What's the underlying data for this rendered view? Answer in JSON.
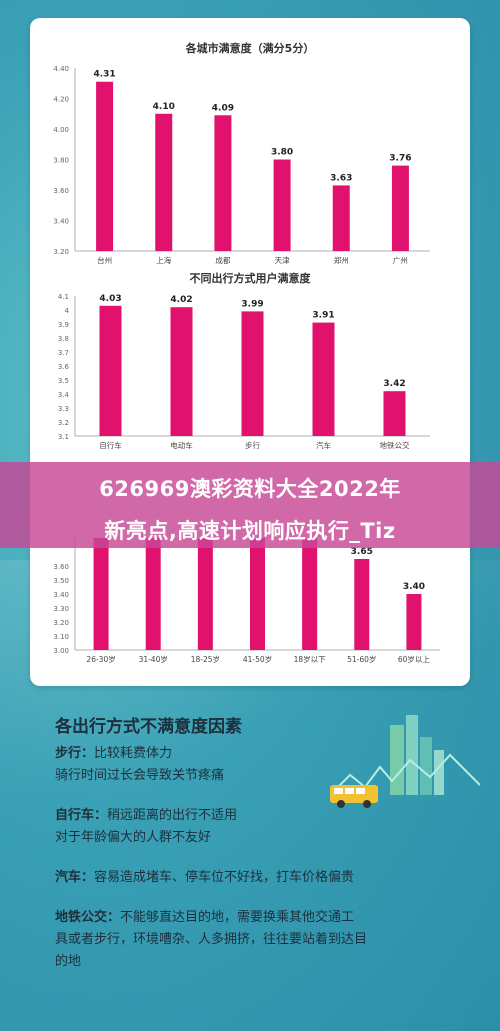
{
  "banner": {
    "text_line1": "626969澳彩资料大全2022年",
    "text_line2": "新亮点,高速计划响应执行_Tiz"
  },
  "chart_data": [
    {
      "type": "bar",
      "title": "各城市满意度（满分5分）",
      "categories": [
        "台州",
        "上海",
        "成都",
        "天津",
        "郑州",
        "广州"
      ],
      "values": [
        4.31,
        4.1,
        4.09,
        3.8,
        3.63,
        3.76
      ],
      "ylim": [
        3.2,
        4.4
      ],
      "yticks": [
        "3.20",
        "3.40",
        "3.60",
        "3.80",
        "4.00",
        "4.20",
        "4.40"
      ],
      "color": "#e0126e",
      "grid": false
    },
    {
      "type": "bar",
      "title": "不同出行方式用户满意度",
      "categories": [
        "自行车",
        "电动车",
        "步行",
        "汽车",
        "地铁公交"
      ],
      "values": [
        4.03,
        4.02,
        3.99,
        3.91,
        3.42
      ],
      "ylim": [
        3.1,
        4.1
      ],
      "yticks": [
        "3.1",
        "3.2",
        "3.3",
        "3.4",
        "3.5",
        "3.6",
        "3.7",
        "3.8",
        "3.9",
        "4",
        "4.1"
      ],
      "color": "#e0126e",
      "grid": false
    },
    {
      "type": "bar",
      "title": "",
      "categories": [
        "26-30岁",
        "31-40岁",
        "18-25岁",
        "41-50岁",
        "18岁以下",
        "51-60岁",
        "60岁以上"
      ],
      "values": [
        null,
        null,
        null,
        null,
        null,
        3.65,
        3.4
      ],
      "value_labels": [
        "",
        "",
        "",
        "",
        "",
        "3.65",
        "3.40"
      ],
      "ylim": [
        3.0,
        3.8
      ],
      "yticks": [
        "3.00",
        "3.10",
        "3.20",
        "3.30",
        "3.40",
        "3.50",
        "3.60"
      ],
      "color": "#e0126e",
      "grid": false
    }
  ],
  "section": {
    "title": "各出行方式不满意度因素",
    "factors": [
      {
        "label": "步行：",
        "text": "比较耗费体力\n骑行时间过长会导致关节疼痛"
      },
      {
        "label": "自行车：",
        "text": "稍远距离的出行不适用\n对于年龄偏大的人群不友好"
      },
      {
        "label": "汽车：",
        "text": "容易造成堵车、停车位不好找，打车价格偏贵"
      },
      {
        "label": "地铁公交：",
        "text": "不能够直达目的地，需要换乘其他交通工\n具或者步行，环境嘈杂、人多拥挤，往往要站着到达目\n的地"
      }
    ]
  },
  "colors": {
    "bar": "#e0126e",
    "banner": "#c74896",
    "background": "#3fa6b7"
  }
}
